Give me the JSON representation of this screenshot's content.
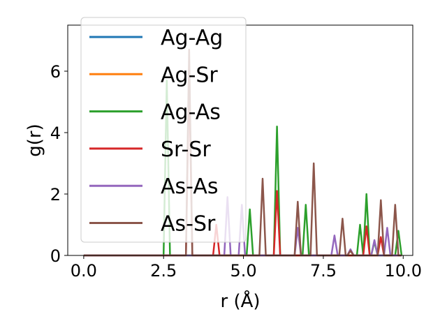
{
  "chart_data": {
    "type": "line",
    "title": "",
    "xlabel": "r (Å)",
    "ylabel": "g(r)",
    "xlim": [
      -0.5,
      10.3
    ],
    "ylim": [
      0,
      7.5
    ],
    "xticks": [
      0.0,
      2.5,
      5.0,
      7.5,
      10.0
    ],
    "xtick_labels": [
      "0.0",
      "2.5",
      "5.0",
      "7.5",
      "10.0"
    ],
    "yticks": [
      0,
      2,
      4,
      6
    ],
    "ytick_labels": [
      "0",
      "2",
      "4",
      "6"
    ],
    "legend_position": "upper-left",
    "peak_half_width": 0.1,
    "series": [
      {
        "name": "Ag-Ag",
        "color": "#1f77b4",
        "peaks": []
      },
      {
        "name": "Ag-Sr",
        "color": "#ff7f0e",
        "peaks": []
      },
      {
        "name": "Ag-As",
        "color": "#2ca02c",
        "peaks": [
          [
            2.6,
            5.7
          ],
          [
            5.2,
            1.5
          ],
          [
            6.05,
            4.2
          ],
          [
            6.95,
            1.65
          ],
          [
            8.65,
            1.0
          ],
          [
            8.85,
            2.0
          ],
          [
            9.1,
            0.45
          ],
          [
            9.85,
            0.8
          ]
        ]
      },
      {
        "name": "Sr-Sr",
        "color": "#d62728",
        "peaks": [
          [
            3.3,
            5.9
          ],
          [
            4.15,
            1.0
          ],
          [
            6.05,
            2.1
          ],
          [
            8.85,
            0.95
          ],
          [
            9.3,
            0.6
          ]
        ]
      },
      {
        "name": "As-As",
        "color": "#9467bd",
        "peaks": [
          [
            4.5,
            1.9
          ],
          [
            4.95,
            1.65
          ],
          [
            6.7,
            0.9
          ],
          [
            7.85,
            0.65
          ],
          [
            8.35,
            0.2
          ],
          [
            9.1,
            0.5
          ],
          [
            9.5,
            0.9
          ]
        ]
      },
      {
        "name": "As-Sr",
        "color": "#8c564b",
        "peaks": [
          [
            3.3,
            6.7
          ],
          [
            5.6,
            2.5
          ],
          [
            6.7,
            1.75
          ],
          [
            7.2,
            3.0
          ],
          [
            8.1,
            1.2
          ],
          [
            8.35,
            0.15
          ],
          [
            9.3,
            1.8
          ],
          [
            9.75,
            1.65
          ]
        ]
      }
    ]
  }
}
